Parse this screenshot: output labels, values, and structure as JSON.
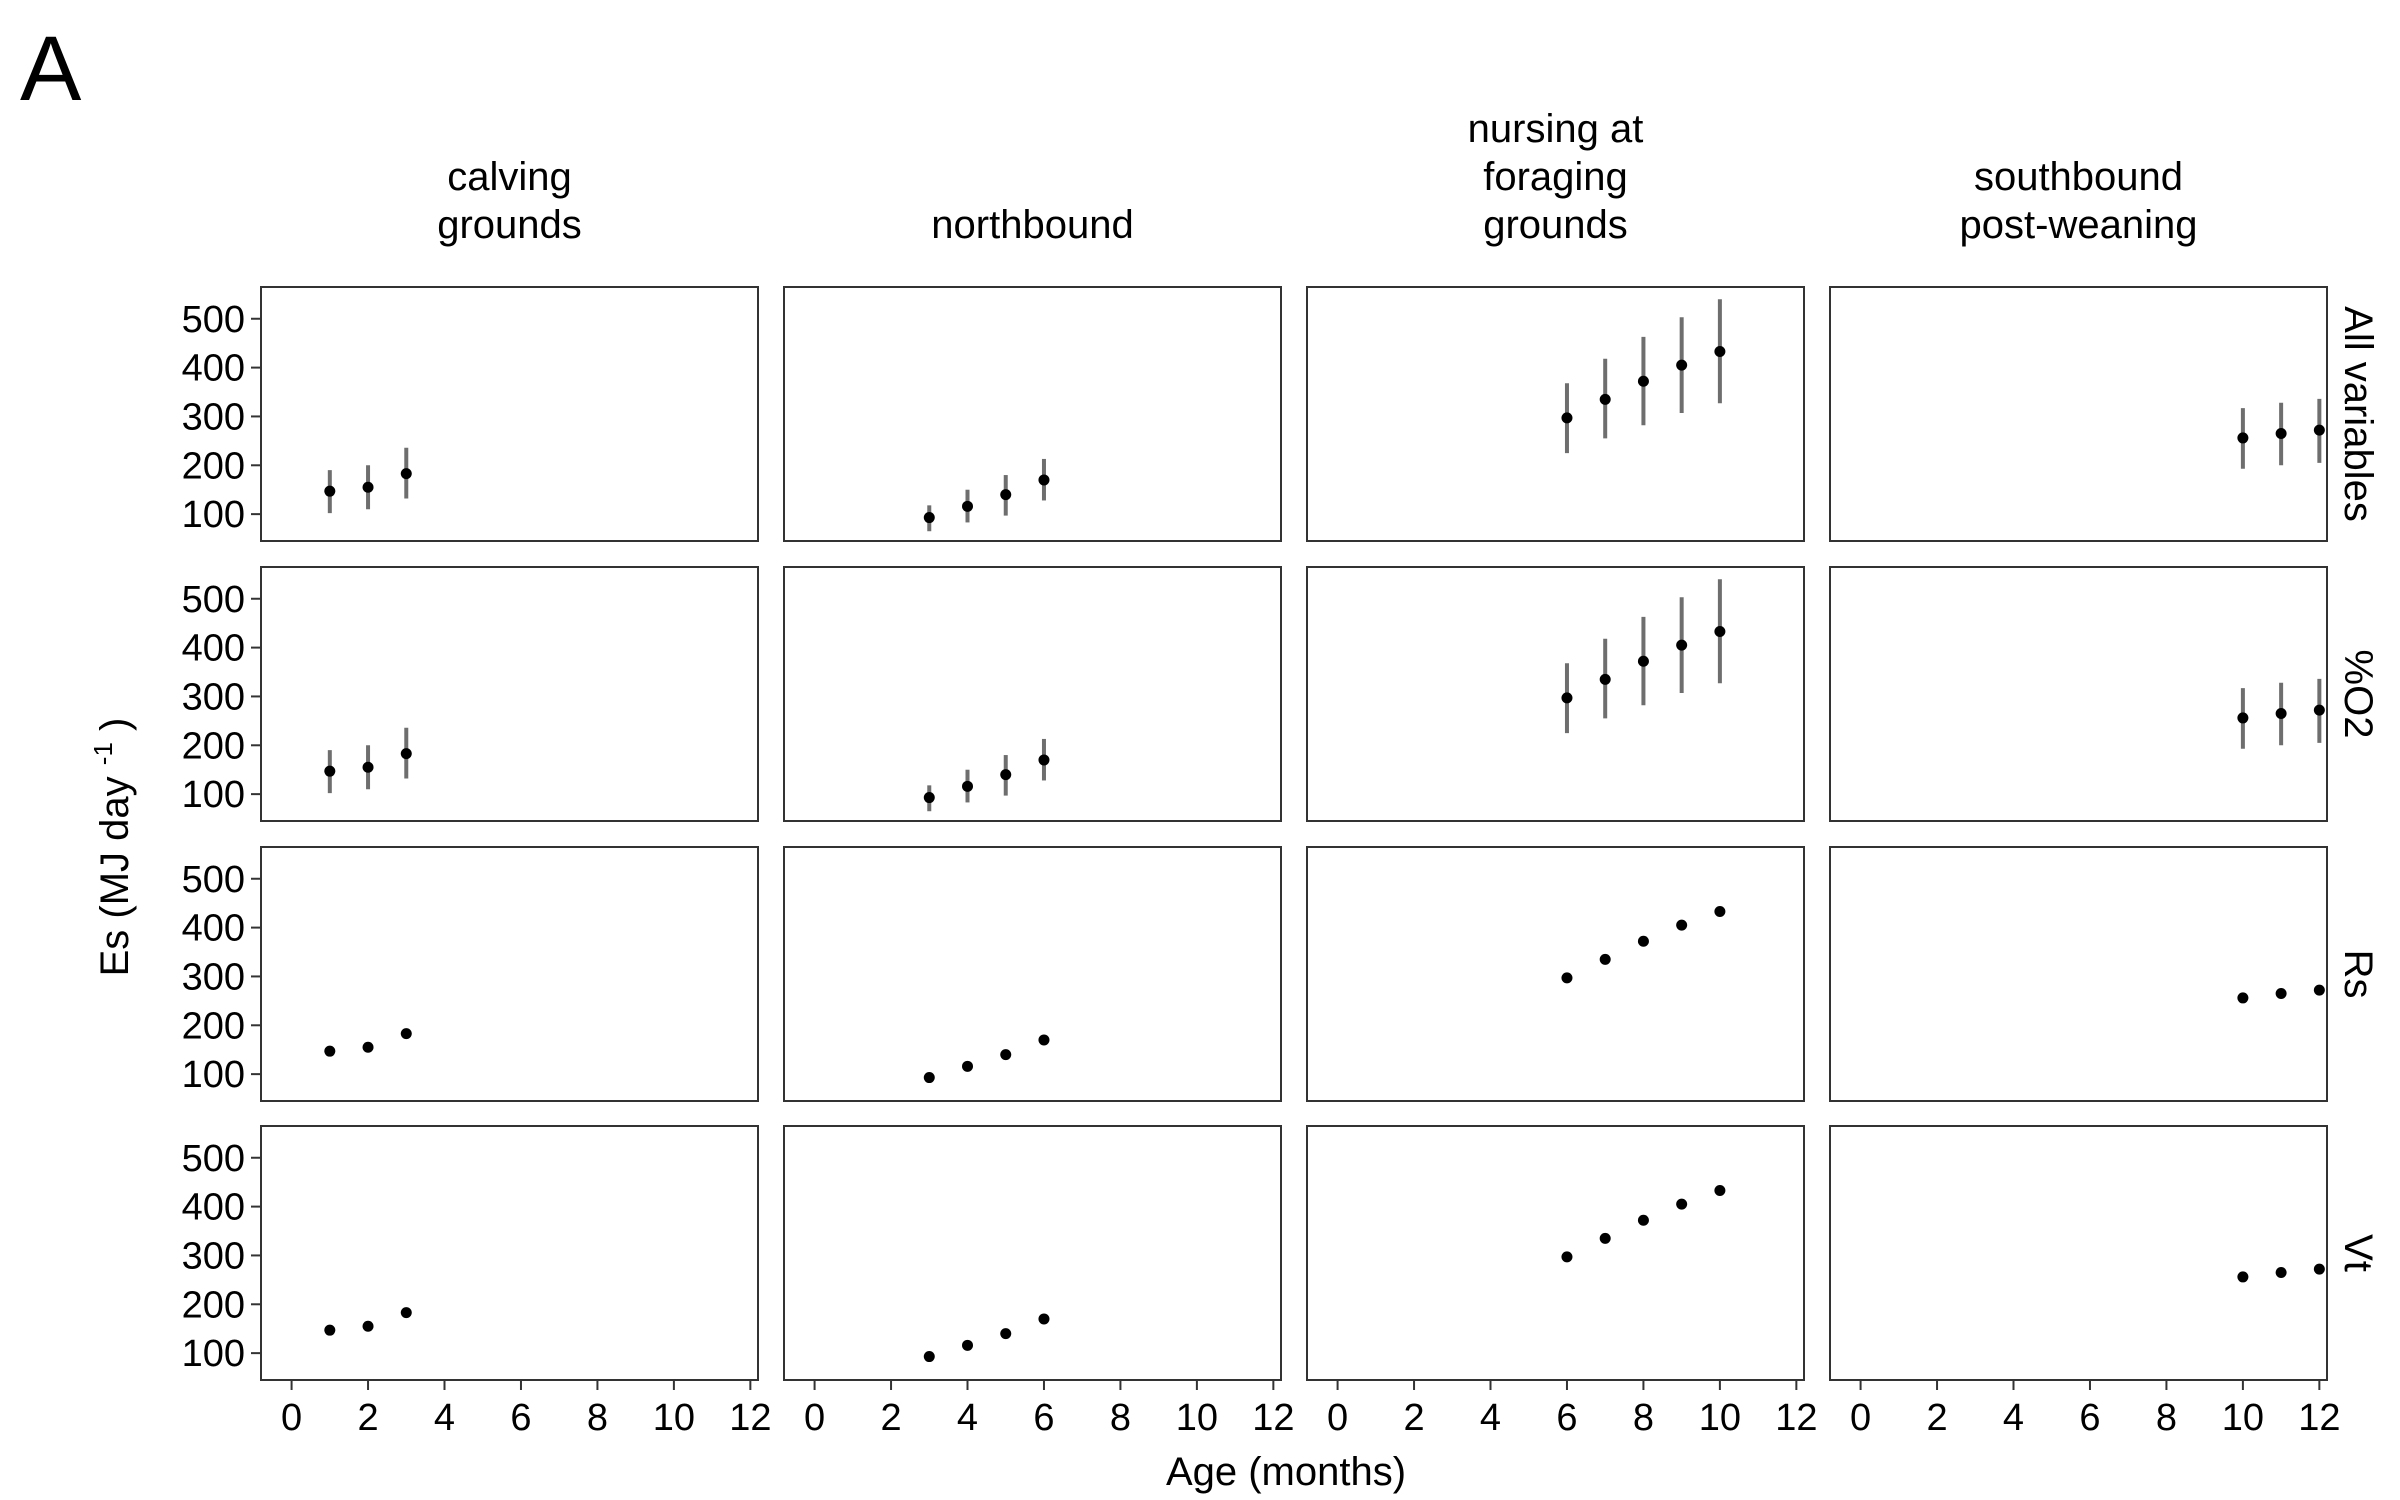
{
  "figure": {
    "panel_label": "A"
  },
  "chart_data": {
    "type": "scatter",
    "xlabel": "Age (months)",
    "ylabel": "Es (MJ day",
    "ylabel_superscript": "-1",
    "ylabel_close": ")",
    "xlim": [
      -0.8,
      12.2
    ],
    "ylim": [
      45,
      565
    ],
    "x_ticks": [
      0,
      2,
      4,
      6,
      8,
      10,
      12
    ],
    "y_ticks": [
      100,
      200,
      300,
      400,
      500
    ],
    "error_bars": "vertical",
    "grid": false,
    "legend": "none",
    "colors": {
      "point": "#000000",
      "error_bar": "#6e6e6e",
      "panel_border": "#333333"
    },
    "columns": [
      {
        "label_lines": [
          "calving",
          "grounds"
        ]
      },
      {
        "label_lines": [
          "northbound"
        ]
      },
      {
        "label_lines": [
          "nursing at",
          "foraging",
          "grounds"
        ]
      },
      {
        "label_lines": [
          "southbound",
          "post-weaning"
        ]
      }
    ],
    "rows": [
      {
        "label": "All variables",
        "error_bars": true
      },
      {
        "label": "%O2",
        "error_bars": true
      },
      {
        "label": "Rs",
        "error_bars": false
      },
      {
        "label": "Vt",
        "error_bars": false
      }
    ],
    "data_by_column": [
      {
        "points": [
          {
            "x": 1,
            "y": 147,
            "ylo": 102,
            "yhi": 190
          },
          {
            "x": 2,
            "y": 155,
            "ylo": 110,
            "yhi": 200
          },
          {
            "x": 3,
            "y": 183,
            "ylo": 132,
            "yhi": 236
          }
        ]
      },
      {
        "points": [
          {
            "x": 3,
            "y": 93,
            "ylo": 65,
            "yhi": 118
          },
          {
            "x": 4,
            "y": 116,
            "ylo": 83,
            "yhi": 150
          },
          {
            "x": 5,
            "y": 140,
            "ylo": 97,
            "yhi": 180
          },
          {
            "x": 6,
            "y": 170,
            "ylo": 128,
            "yhi": 213
          }
        ]
      },
      {
        "points": [
          {
            "x": 6,
            "y": 297,
            "ylo": 225,
            "yhi": 368
          },
          {
            "x": 7,
            "y": 335,
            "ylo": 255,
            "yhi": 418
          },
          {
            "x": 8,
            "y": 372,
            "ylo": 282,
            "yhi": 463
          },
          {
            "x": 9,
            "y": 405,
            "ylo": 307,
            "yhi": 503
          },
          {
            "x": 10,
            "y": 433,
            "ylo": 327,
            "yhi": 540
          }
        ]
      },
      {
        "points": [
          {
            "x": 10,
            "y": 256,
            "ylo": 193,
            "yhi": 317
          },
          {
            "x": 11,
            "y": 265,
            "ylo": 200,
            "yhi": 328
          },
          {
            "x": 12,
            "y": 272,
            "ylo": 205,
            "yhi": 336
          }
        ]
      }
    ]
  }
}
